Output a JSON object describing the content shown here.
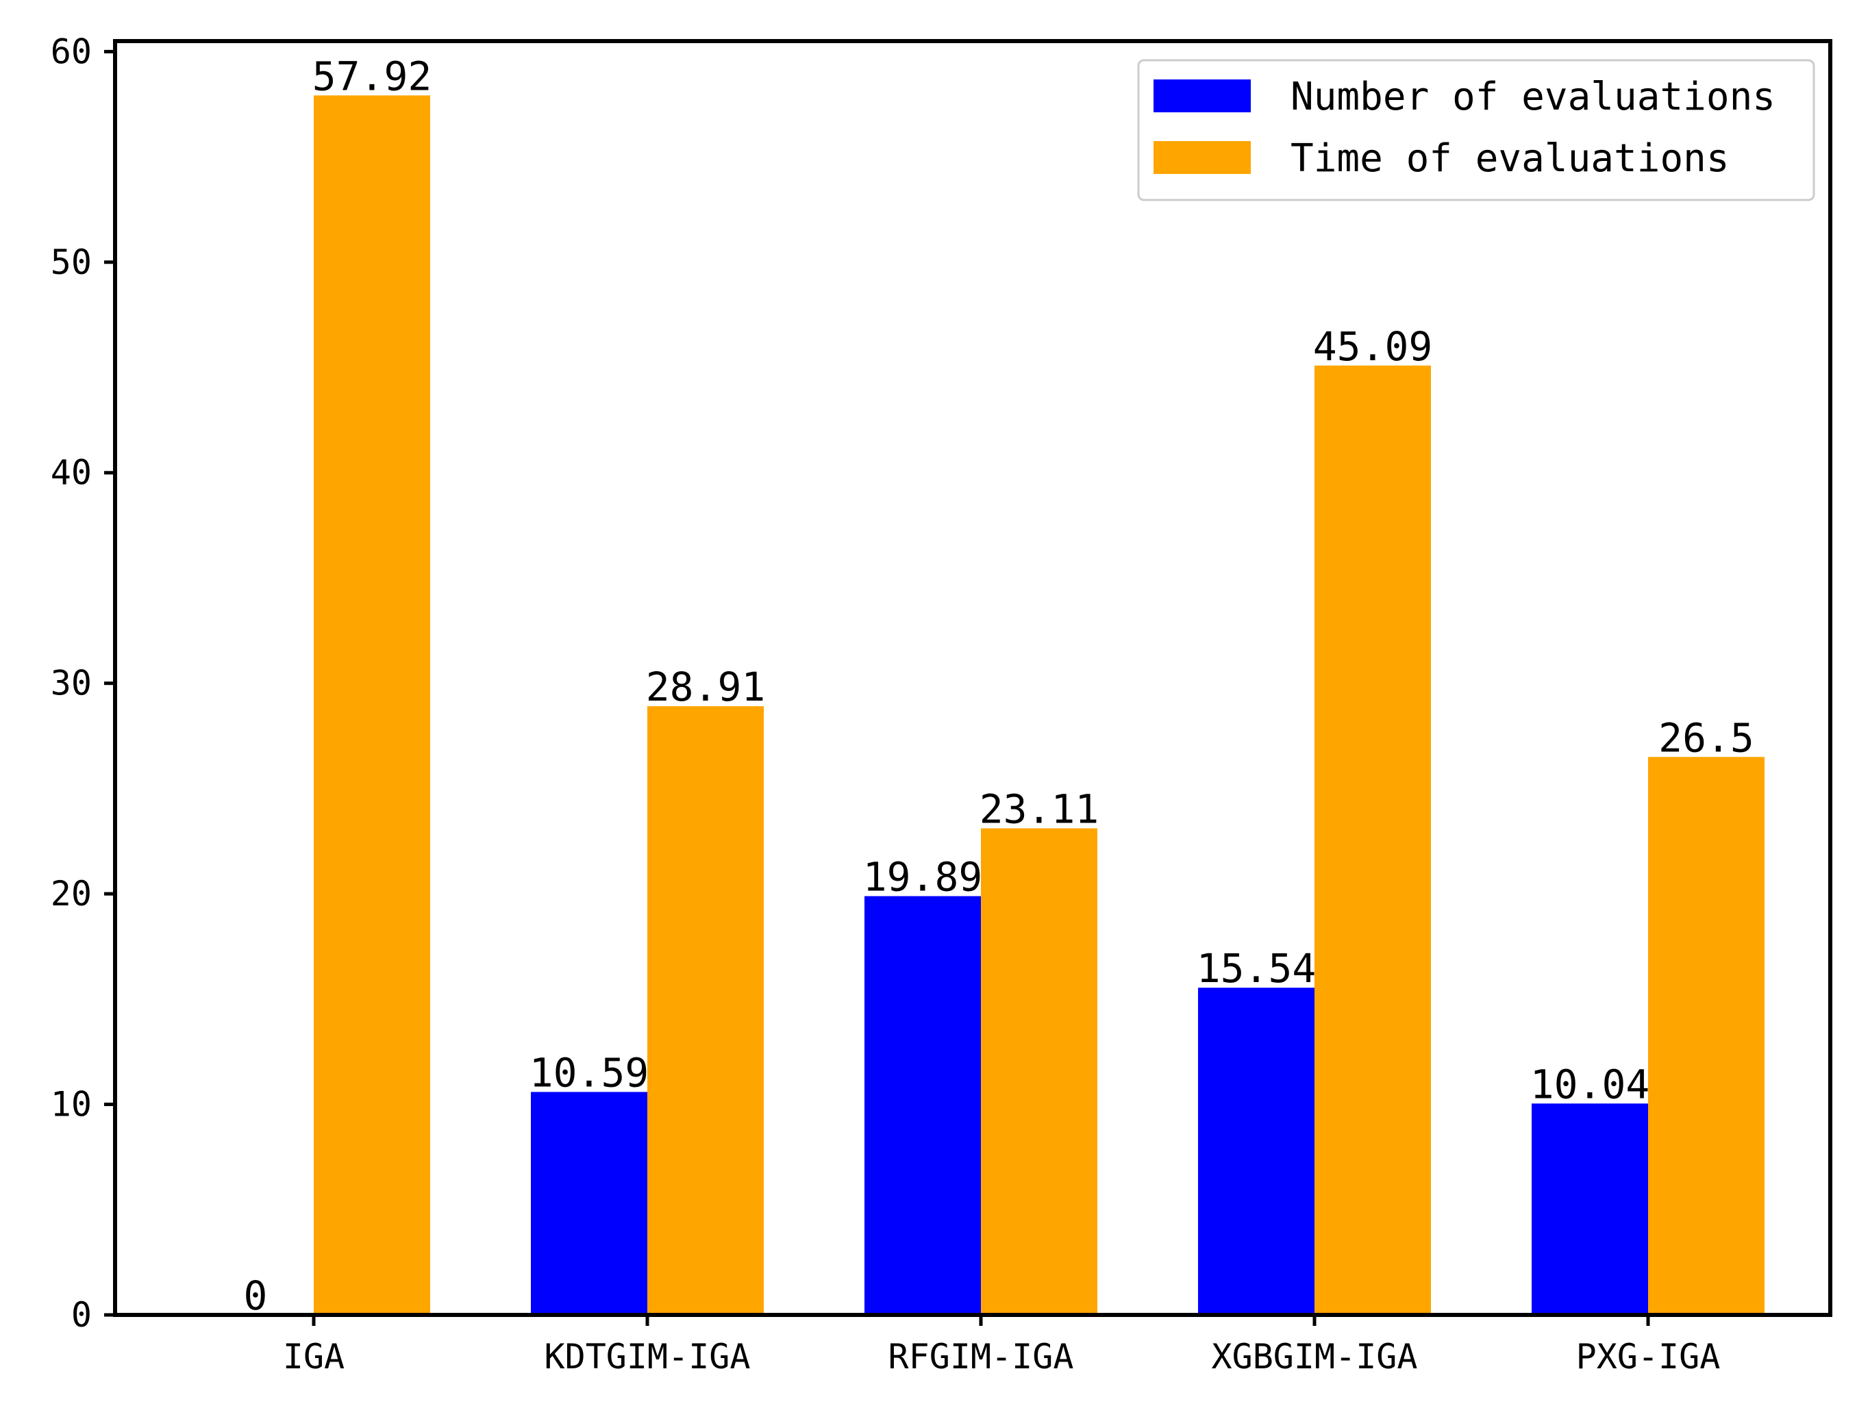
{
  "chart_data": {
    "type": "bar",
    "title": "",
    "xlabel": "",
    "ylabel": "",
    "categories": [
      "IGA",
      "KDTGIM-IGA",
      "RFGIM-IGA",
      "XGBGIM-IGA",
      "PXG-IGA"
    ],
    "series": [
      {
        "name": "Number of evaluations",
        "color": "#0000ff",
        "values": [
          0,
          10.59,
          19.89,
          15.54,
          10.04
        ],
        "labels": [
          "0",
          "10.59",
          "19.89",
          "15.54",
          "10.04"
        ]
      },
      {
        "name": "Time of evaluations",
        "color": "#ffa500",
        "values": [
          57.92,
          28.91,
          23.11,
          45.09,
          26.5
        ],
        "labels": [
          "57.92",
          "28.91",
          "23.11",
          "45.09",
          "26.5"
        ]
      }
    ],
    "ylim": [
      0,
      60.5
    ],
    "yticks": [
      0,
      10,
      20,
      30,
      40,
      50,
      60
    ],
    "grid": false,
    "legend": "top-right"
  }
}
